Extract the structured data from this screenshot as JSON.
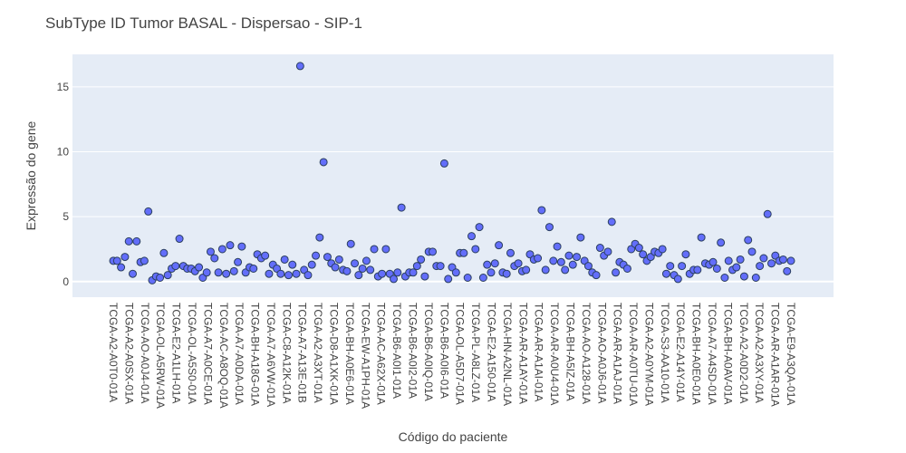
{
  "chart_data": {
    "type": "scatter",
    "title": "SubType ID Tumor BASAL - Dispersao - SIP-1",
    "xlabel": "Código do paciente",
    "ylabel": "Expressão do gene",
    "ylim": [
      -1.2,
      17.5
    ],
    "y_ticks": [
      0,
      5,
      10,
      15
    ],
    "grid": true,
    "legend": "none",
    "colors": {
      "plot_background": "#e5ecf6",
      "marker_fill": "#636efa",
      "marker_stroke": "#2a3f5f",
      "text": "#444444"
    },
    "x_tick_labels": [
      "TCGA-A2-A0T0-01A",
      "TCGA-A2-A0SX-01A",
      "TCGA-AO-A0J4-01A",
      "TCGA-OL-A5RW-01A",
      "TCGA-E2-A1LH-01A",
      "TCGA-OL-A5S0-01A",
      "TCGA-A7-A0CE-01A",
      "TCGA-AC-A8OQ-01A",
      "TCGA-A7-A0DA-01A",
      "TCGA-BH-A18G-01A",
      "TCGA-A7-A6VW-01A",
      "TCGA-C8-A12K-01A",
      "TCGA-A7-A13E-01B",
      "TCGA-A2-A3XT-01A",
      "TCGA-D8-A1XK-01A",
      "TCGA-BH-A0E6-01A",
      "TCGA-EW-A1PH-01A",
      "TCGA-AC-A62X-01A",
      "TCGA-B6-A0I1-01A",
      "TCGA-B6-A0I2-01A",
      "TCGA-B6-A0IQ-01A",
      "TCGA-B6-A0I6-01A",
      "TCGA-OL-A5D7-01A",
      "TCGA-PL-A8LZ-01A",
      "TCGA-E2-A150-01A",
      "TCGA-HN-A2NL-01A",
      "TCGA-AR-A1AY-01A",
      "TCGA-AR-A1AI-01A",
      "TCGA-AR-A0U4-01A",
      "TCGA-BH-A5IZ-01A",
      "TCGA-AO-A128-01A",
      "TCGA-AO-A0J6-01A",
      "TCGA-AR-A1AJ-01A",
      "TCGA-AR-A0TU-01A",
      "TCGA-A2-A0YM-01A",
      "TCGA-S3-AA10-01A",
      "TCGA-E2-A14Y-01A",
      "TCGA-BH-A0E0-01A",
      "TCGA-A7-A4SD-01A",
      "TCGA-BH-A0AV-01A",
      "TCGA-A2-A0D2-01A",
      "TCGA-A2-A3XY-01A",
      "TCGA-AR-A1AR-01A",
      "TCGA-E9-A3QA-01A"
    ],
    "y": [
      1.6,
      1.6,
      1.1,
      1.9,
      3.1,
      0.6,
      3.1,
      1.5,
      1.6,
      5.4,
      0.1,
      0.4,
      0.3,
      2.2,
      0.5,
      1.0,
      1.2,
      3.3,
      1.2,
      1.0,
      1.0,
      0.8,
      1.1,
      0.3,
      0.7,
      2.3,
      1.8,
      0.7,
      2.5,
      0.6,
      2.8,
      0.8,
      1.5,
      2.7,
      0.7,
      1.1,
      1.0,
      2.1,
      1.8,
      2.0,
      0.6,
      1.3,
      1.0,
      0.6,
      1.7,
      0.5,
      1.3,
      0.6,
      16.6,
      0.9,
      0.5,
      1.3,
      2.0,
      3.4,
      9.2,
      1.9,
      1.4,
      1.1,
      1.7,
      0.9,
      0.8,
      2.9,
      1.4,
      0.5,
      1.0,
      1.6,
      0.9,
      2.5,
      0.4,
      0.6,
      2.5,
      0.6,
      0.2,
      0.7,
      5.7,
      0.4,
      0.7,
      0.7,
      1.2,
      1.7,
      0.4,
      2.3,
      2.3,
      1.2,
      1.2,
      9.1,
      0.2,
      1.1,
      0.7,
      2.2,
      2.2,
      0.3,
      3.5,
      2.5,
      4.2,
      0.3,
      1.3,
      0.7,
      1.4,
      2.8,
      0.7,
      0.6,
      2.2,
      1.2,
      1.4,
      0.8,
      0.9,
      2.1,
      1.7,
      1.8,
      5.5,
      0.9,
      4.2,
      1.6,
      2.7,
      1.5,
      0.9,
      2.0,
      1.3,
      1.9,
      3.4,
      1.6,
      1.2,
      0.7,
      0.5,
      2.6,
      2.0,
      2.3,
      4.6,
      0.7,
      1.5,
      1.3,
      1.0,
      2.5,
      2.9,
      2.6,
      2.1,
      1.6,
      1.9,
      2.3,
      2.2,
      2.5,
      0.6,
      1.2,
      0.5,
      0.2,
      1.2,
      2.1,
      0.6,
      0.9,
      0.9,
      3.4,
      1.4,
      1.3,
      1.5,
      1.0,
      3.0,
      0.3,
      1.6,
      0.9,
      1.1,
      1.7,
      0.4,
      3.2,
      2.3,
      0.3,
      1.2,
      1.8,
      5.2,
      1.4,
      2.0,
      1.6,
      1.7,
      0.8,
      1.6
    ]
  }
}
